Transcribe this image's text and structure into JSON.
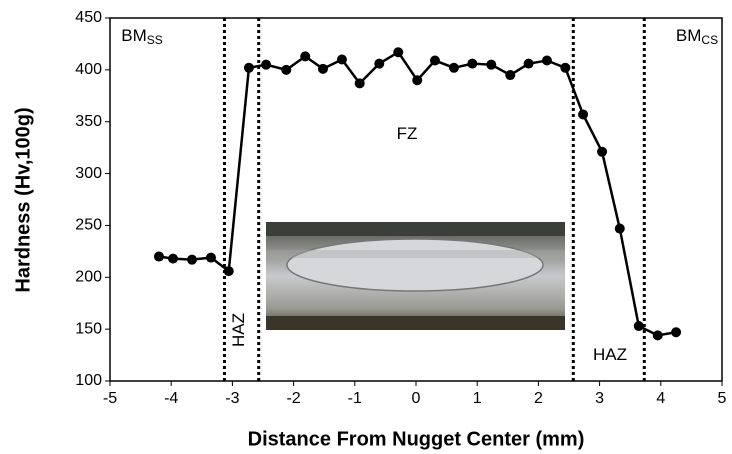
{
  "chart_data": {
    "type": "line",
    "x_label": "Distance From Nugget Center (mm)",
    "y_label": "Hardness (Hv,100g)",
    "xlim": [
      -5,
      5
    ],
    "ylim": [
      100,
      450
    ],
    "xticks": [
      -5,
      -4,
      -3,
      -2,
      -1,
      0,
      1,
      2,
      3,
      4,
      5
    ],
    "yticks": [
      100,
      150,
      200,
      250,
      300,
      350,
      400,
      450
    ],
    "series": [
      {
        "color": "#000000",
        "x": [
          -4.2,
          -3.97,
          -3.66,
          -3.35,
          -3.06,
          -2.73,
          -2.45,
          -2.12,
          -1.81,
          -1.52,
          -1.21,
          -0.92,
          -0.6,
          -0.29,
          0.02,
          0.31,
          0.62,
          0.92,
          1.23,
          1.54,
          1.84,
          2.14,
          2.44,
          2.73,
          3.04,
          3.33,
          3.64,
          3.95,
          4.25
        ],
        "values": [
          220,
          218,
          217,
          219,
          206,
          402,
          405,
          400,
          413,
          401,
          410,
          387,
          406,
          417,
          390,
          409,
          402,
          406,
          405,
          395,
          406,
          409,
          402,
          357,
          321,
          247,
          153,
          144,
          147
        ]
      }
    ],
    "vlines": [
      -3.13,
      -2.57,
      2.57,
      3.73
    ],
    "annotations": [
      {
        "text": "BM",
        "sub": "SS"
      },
      {
        "text": "BM",
        "sub": "CS"
      },
      {
        "text": "FZ"
      },
      {
        "text": "HAZ"
      },
      {
        "text": "HAZ"
      }
    ]
  }
}
